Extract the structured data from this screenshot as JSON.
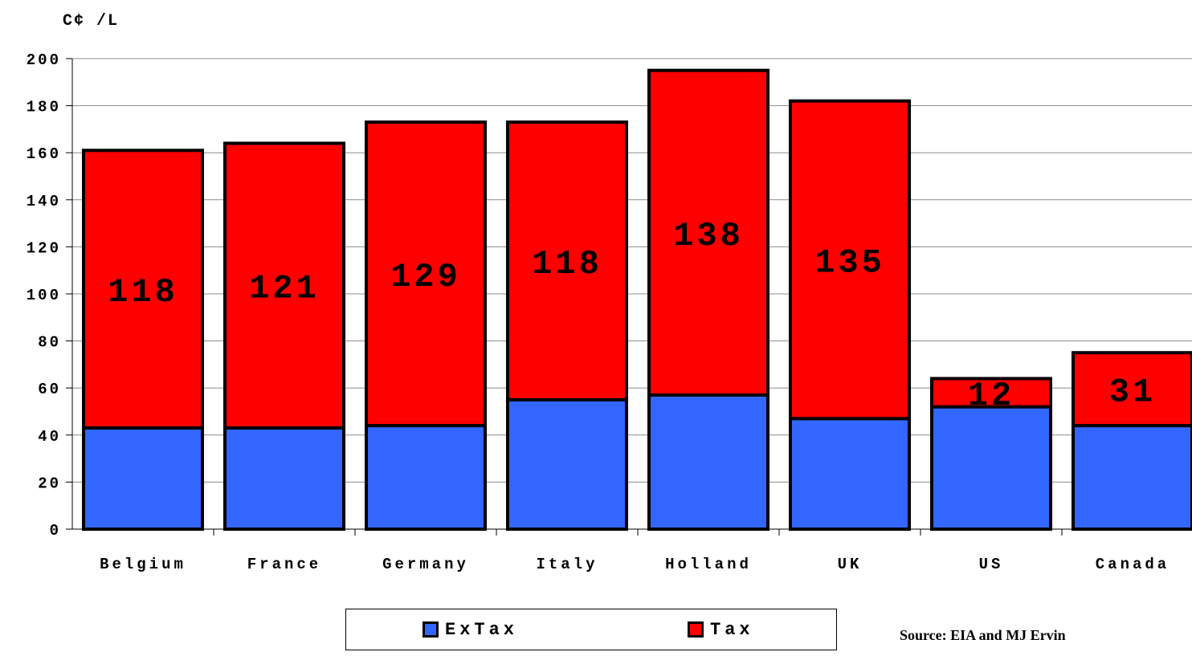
{
  "chart_data": {
    "type": "bar",
    "stacked": true,
    "ylabel": "C¢ /L",
    "ylim": [
      0,
      200
    ],
    "yticks": [
      0,
      20,
      40,
      60,
      80,
      100,
      120,
      140,
      160,
      180,
      200
    ],
    "grid": true,
    "legend_position": "bottom",
    "categories": [
      "Belgium",
      "France",
      "Germany",
      "Italy",
      "Holland",
      "UK",
      "US",
      "Canada"
    ],
    "series": [
      {
        "name": "ExTax",
        "color": "#3366ff",
        "values": [
          43,
          43,
          44,
          55,
          57,
          47,
          52,
          44
        ]
      },
      {
        "name": "Tax",
        "color": "#ff0000",
        "values": [
          118,
          121,
          129,
          118,
          138,
          135,
          12,
          31
        ]
      }
    ],
    "data_labels": [
      "118",
      "121",
      "129",
      "118",
      "138",
      "135",
      "12",
      "31"
    ],
    "source": "Source: EIA and MJ Ervin"
  }
}
